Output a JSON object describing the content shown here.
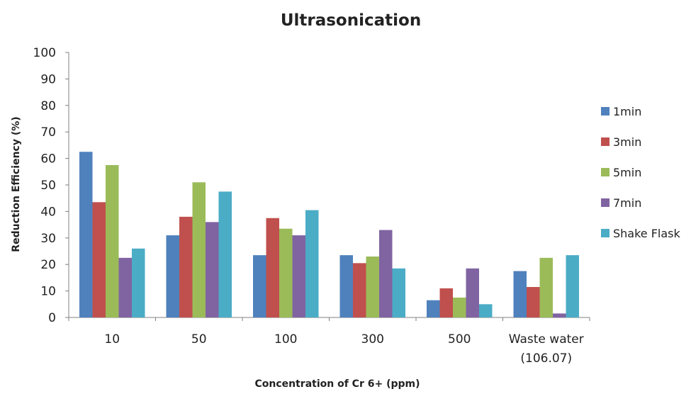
{
  "chart_data": {
    "type": "bar",
    "title": "Ultrasonication",
    "xlabel": "Concentration of Cr 6+ (ppm)",
    "ylabel": "Reduction Efficiency (%)",
    "ylim": [
      0,
      100
    ],
    "yticks": [
      0,
      10,
      20,
      30,
      40,
      50,
      60,
      70,
      80,
      90,
      100
    ],
    "grid": false,
    "legend_position": "right",
    "categories": [
      [
        "10"
      ],
      [
        "50"
      ],
      [
        "100"
      ],
      [
        "300"
      ],
      [
        "500"
      ],
      [
        "Waste water",
        "(106.07)"
      ]
    ],
    "series": [
      {
        "name": "1min",
        "color": "#4F81BD",
        "values": [
          62.5,
          31,
          23.5,
          23.5,
          6.5,
          17.5
        ]
      },
      {
        "name": "3min",
        "color": "#C0504D",
        "values": [
          43.5,
          38,
          37.5,
          20.5,
          11,
          11.5
        ]
      },
      {
        "name": "5min",
        "color": "#9BBB59",
        "values": [
          57.5,
          51,
          33.5,
          23,
          7.5,
          22.5
        ]
      },
      {
        "name": "7min",
        "color": "#8064A2",
        "values": [
          22.5,
          36,
          31,
          33,
          18.5,
          1.5
        ]
      },
      {
        "name": "Shake Flask",
        "color": "#4BACC6",
        "values": [
          26,
          47.5,
          40.5,
          18.5,
          5,
          23.5
        ]
      }
    ]
  }
}
